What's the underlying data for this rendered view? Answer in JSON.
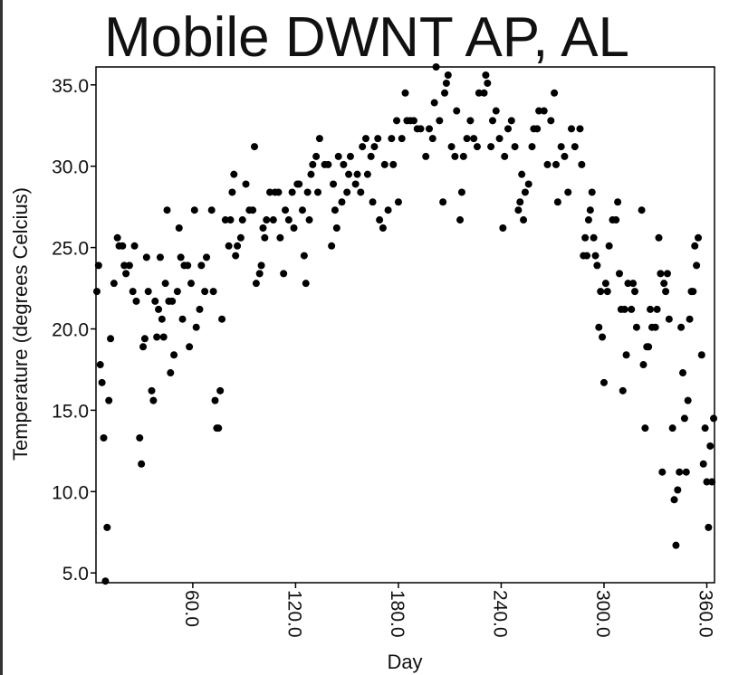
{
  "chart_data": {
    "type": "scatter",
    "title": "Mobile DWNT AP, AL",
    "xlabel": "Day",
    "ylabel": "Temperature (degrees Celcius)",
    "color": "#000000",
    "xlim": [
      3.5,
      364.5
    ],
    "ylim": [
      4.4,
      36.1
    ],
    "xticks": [
      {
        "value": 60,
        "label": "60.0"
      },
      {
        "value": 120,
        "label": "120.0"
      },
      {
        "value": 180,
        "label": "180.0"
      },
      {
        "value": 240,
        "label": "240.0"
      },
      {
        "value": 300,
        "label": "300.0"
      },
      {
        "value": 360,
        "label": "360.0"
      }
    ],
    "yticks": [
      {
        "value": 5,
        "label": "5.0"
      },
      {
        "value": 10,
        "label": "10.0"
      },
      {
        "value": 15,
        "label": "15.0"
      },
      {
        "value": 20,
        "label": "20.0"
      },
      {
        "value": 25,
        "label": "25.0"
      },
      {
        "value": 30,
        "label": "30.0"
      },
      {
        "value": 35,
        "label": "35.0"
      }
    ],
    "x": [
      4,
      5,
      6,
      7,
      8,
      9,
      10,
      11,
      12,
      14,
      16,
      17,
      19,
      20,
      21,
      23,
      25,
      26,
      27,
      29,
      30,
      31,
      32,
      33,
      34,
      36,
      37,
      38,
      39,
      40,
      41,
      42,
      43,
      44,
      45,
      46,
      47,
      48,
      49,
      51,
      52,
      53,
      54,
      55,
      57,
      58,
      59,
      61,
      62,
      64,
      65,
      67,
      68,
      71,
      72,
      73,
      74,
      75,
      76,
      77,
      79,
      81,
      82,
      83,
      84,
      85,
      86,
      88,
      89,
      91,
      93,
      95,
      96,
      97,
      99,
      100,
      101,
      102,
      103,
      105,
      107,
      108,
      110,
      111,
      113,
      114,
      116,
      118,
      119,
      121,
      122,
      124,
      125,
      126,
      127,
      128,
      129,
      130,
      132,
      133,
      134,
      137,
      139,
      141,
      142,
      143,
      144,
      145,
      147,
      148,
      150,
      151,
      152,
      155,
      156,
      158,
      159,
      161,
      162,
      164,
      165,
      166,
      168,
      169,
      171,
      172,
      174,
      176,
      177,
      179,
      180,
      182,
      184,
      185,
      187,
      189,
      191,
      193,
      196,
      198,
      200,
      201,
      202,
      204,
      206,
      207,
      208,
      209,
      211,
      213,
      214,
      216,
      217,
      218,
      220,
      222,
      224,
      226,
      227,
      230,
      231,
      232,
      234,
      235,
      237,
      239,
      241,
      242,
      244,
      246,
      248,
      250,
      251,
      252,
      253,
      254,
      256,
      258,
      259,
      261,
      262,
      265,
      267,
      269,
      271,
      272,
      273,
      275,
      277,
      279,
      281,
      283,
      286,
      287,
      288,
      289,
      290,
      291,
      292,
      293,
      294,
      295,
      296,
      297,
      298,
      299,
      300,
      301,
      302,
      303,
      305,
      307,
      308,
      309,
      310,
      311,
      312,
      313,
      314,
      316,
      317,
      318,
      319,
      322,
      323,
      324,
      325,
      326,
      327,
      328,
      330,
      331,
      332,
      333,
      334,
      335,
      336,
      337,
      338,
      340,
      341,
      342,
      343,
      344,
      345,
      346,
      347,
      348,
      349,
      350,
      351,
      352,
      353,
      354,
      355,
      357,
      358,
      359,
      360,
      361,
      362,
      363,
      364
    ],
    "values": [
      22.3,
      23.9,
      17.8,
      16.7,
      13.3,
      4.5,
      7.8,
      15.6,
      19.4,
      22.8,
      25.6,
      25.1,
      25.1,
      23.9,
      23.4,
      23.9,
      22.3,
      25.1,
      21.7,
      13.3,
      11.7,
      18.9,
      19.4,
      24.4,
      22.3,
      16.2,
      15.6,
      21.7,
      19.5,
      21.2,
      24.4,
      20.6,
      19.5,
      22.8,
      27.3,
      21.7,
      17.3,
      21.7,
      18.4,
      22.3,
      26.2,
      24.4,
      20.6,
      23.9,
      23.9,
      18.9,
      22.8,
      27.3,
      20.1,
      21.2,
      23.9,
      22.3,
      24.4,
      27.3,
      22.3,
      15.6,
      13.9,
      13.9,
      16.2,
      20.6,
      26.7,
      25.1,
      26.7,
      28.4,
      29.5,
      24.5,
      25.1,
      25.6,
      26.7,
      28.9,
      27.3,
      27.3,
      31.2,
      22.8,
      23.4,
      23.9,
      26.2,
      25.6,
      26.7,
      28.4,
      26.7,
      28.4,
      28.4,
      25.6,
      23.4,
      27.3,
      26.7,
      28.4,
      26.2,
      28.9,
      28.9,
      27.3,
      24.5,
      22.8,
      28.4,
      26.7,
      29.5,
      30.1,
      30.6,
      28.4,
      31.7,
      30.1,
      30.1,
      25.1,
      28.9,
      27.3,
      26.2,
      30.6,
      27.8,
      30.1,
      28.4,
      29.5,
      30.6,
      28.9,
      29.5,
      28.4,
      31.2,
      31.7,
      29.5,
      30.6,
      27.8,
      31.2,
      31.7,
      26.7,
      26.2,
      30.1,
      27.3,
      31.7,
      30.1,
      32.8,
      27.8,
      31.7,
      34.5,
      32.8,
      32.8,
      32.8,
      32.3,
      32.3,
      30.6,
      32.3,
      31.7,
      33.9,
      36.1,
      32.8,
      27.8,
      34.5,
      35.1,
      35.6,
      31.2,
      30.6,
      33.4,
      26.7,
      28.4,
      30.6,
      31.7,
      32.8,
      31.7,
      31.2,
      34.5,
      34.5,
      35.6,
      35.1,
      31.2,
      32.8,
      33.4,
      31.7,
      26.2,
      30.6,
      32.3,
      32.8,
      31.2,
      27.3,
      27.8,
      29.5,
      26.7,
      28.4,
      28.9,
      31.2,
      32.3,
      32.3,
      33.4,
      33.4,
      30.1,
      32.8,
      34.5,
      30.1,
      27.8,
      31.2,
      30.6,
      28.4,
      32.3,
      31.2,
      32.3,
      30.1,
      24.5,
      25.6,
      24.5,
      26.7,
      27.3,
      28.4,
      25.6,
      24.5,
      23.9,
      20.1,
      22.3,
      19.5,
      16.7,
      22.8,
      22.3,
      25.1,
      26.7,
      26.7,
      27.8,
      23.4,
      21.2,
      16.2,
      21.2,
      18.4,
      22.8,
      21.2,
      22.8,
      22.3,
      20.1,
      27.3,
      17.8,
      13.9,
      18.9,
      18.9,
      21.2,
      20.1,
      20.1,
      21.2,
      25.6,
      23.4,
      11.2,
      22.8,
      22.3,
      23.4,
      20.6,
      13.9,
      9.5,
      6.7,
      10.1,
      11.2,
      20.1,
      17.3,
      14.5,
      11.2,
      15.6,
      20.6,
      22.3,
      22.3,
      25.1,
      23.9,
      25.6,
      18.4,
      11.7,
      13.9,
      10.6,
      7.8,
      12.8,
      10.6,
      14.5
    ]
  }
}
